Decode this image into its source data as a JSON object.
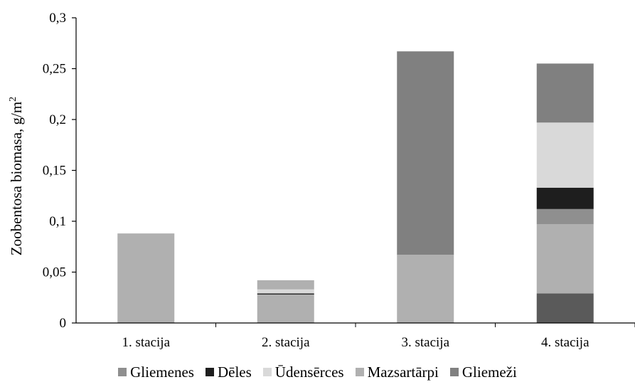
{
  "chart_data": {
    "type": "bar",
    "stacked": true,
    "categories": [
      "1. stacija",
      "2. stacija",
      "3. stacija",
      "4. stacija"
    ],
    "ylabel": "Zoobentosa biomasa, g/m",
    "ylabel_sup": "2",
    "ylim": [
      0,
      0.3
    ],
    "yticks": [
      "0",
      "0,05",
      "0,1",
      "0,15",
      "0,2",
      "0,25",
      "0,3"
    ],
    "ytick_values": [
      0,
      0.05,
      0.1,
      0.15,
      0.2,
      0.25,
      0.3
    ],
    "grid": false,
    "legend_position": "bottom",
    "segments": [
      [
        {
          "label": "Mazsartārpi",
          "value": 0.088,
          "color": "#b0b0b0"
        }
      ],
      [
        {
          "label": "Mazsartārpi",
          "value": 0.028,
          "color": "#b0b0b0"
        },
        {
          "label": "Dēles",
          "value": 0.001,
          "color": "#1e1e1e"
        },
        {
          "label": "Ūdensērces",
          "value": 0.004,
          "color": "#d9d9d9"
        },
        {
          "label": "Mazsartārpi",
          "value": 0.009,
          "color": "#b0b0b0"
        }
      ],
      [
        {
          "label": "Mazsartārpi",
          "value": 0.067,
          "color": "#b0b0b0"
        },
        {
          "label": "Gliemeži",
          "value": 0.2,
          "color": "#808080"
        }
      ],
      [
        {
          "label": "",
          "value": 0.029,
          "color": "#5a5a5a"
        },
        {
          "label": "Mazsartārpi",
          "value": 0.068,
          "color": "#b0b0b0"
        },
        {
          "label": "Gliemenes",
          "value": 0.015,
          "color": "#8f8f8f"
        },
        {
          "label": "Dēles",
          "value": 0.021,
          "color": "#1e1e1e"
        },
        {
          "label": "Ūdensērces",
          "value": 0.064,
          "color": "#d9d9d9"
        },
        {
          "label": "Gliemeži",
          "value": 0.058,
          "color": "#808080"
        }
      ]
    ],
    "legend": [
      {
        "name": "Gliemenes",
        "color": "#8f8f8f"
      },
      {
        "name": "Dēles",
        "color": "#1e1e1e"
      },
      {
        "name": "Ūdensērces",
        "color": "#d9d9d9"
      },
      {
        "name": "Mazsartārpi",
        "color": "#b0b0b0"
      },
      {
        "name": "Gliemeži",
        "color": "#808080"
      }
    ]
  }
}
